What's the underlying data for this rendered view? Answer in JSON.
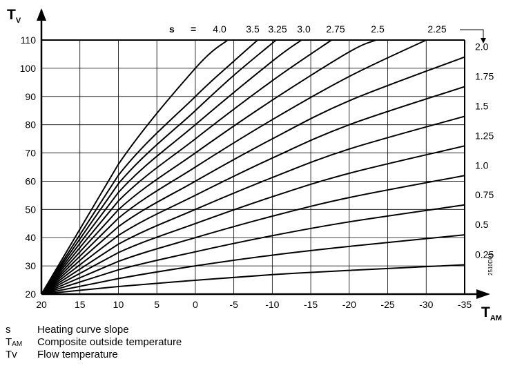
{
  "chart_data": {
    "type": "line",
    "xlabel": "T",
    "xlabel_sub": "AM",
    "ylabel": "T",
    "ylabel_sub": "V",
    "x_ticks": [
      "20",
      "15",
      "10",
      "5",
      "0",
      "-5",
      "-10",
      "-15",
      "-20",
      "-25",
      "-30",
      "-35"
    ],
    "y_ticks": [
      "20",
      "30",
      "40",
      "50",
      "60",
      "70",
      "80",
      "90",
      "100",
      "110"
    ],
    "xlim": [
      20,
      -35
    ],
    "ylim": [
      20,
      110
    ],
    "grid": true,
    "s_prefix": "s",
    "s_equals": "=",
    "code": "2510D01",
    "series": [
      {
        "name": "0.25",
        "points": [
          [
            10,
            22.7
          ],
          [
            0,
            24.9
          ],
          [
            -10,
            26.9
          ],
          [
            -20,
            28.4
          ],
          [
            -35,
            30.4
          ]
        ]
      },
      {
        "name": "0.5",
        "points": [
          [
            10,
            25.5
          ],
          [
            0,
            30.0
          ],
          [
            -10,
            33.8
          ],
          [
            -20,
            36.9
          ],
          [
            -35,
            41.0
          ]
        ]
      },
      {
        "name": "0.75",
        "points": [
          [
            10,
            28.6
          ],
          [
            0,
            35.0
          ],
          [
            -10,
            40.7
          ],
          [
            -20,
            45.6
          ],
          [
            -35,
            51.6
          ]
        ]
      },
      {
        "name": "1.0",
        "points": [
          [
            10,
            31.6
          ],
          [
            0,
            40.0
          ],
          [
            -10,
            47.6
          ],
          [
            -20,
            54.2
          ],
          [
            -35,
            62.0
          ]
        ]
      },
      {
        "name": "1.25",
        "points": [
          [
            10,
            34.7
          ],
          [
            0,
            45.0
          ],
          [
            -10,
            54.5
          ],
          [
            -20,
            62.8
          ],
          [
            -35,
            72.5
          ]
        ]
      },
      {
        "name": "1.5",
        "points": [
          [
            10,
            37.7
          ],
          [
            0,
            50.0
          ],
          [
            -10,
            61.3
          ],
          [
            -20,
            71.4
          ],
          [
            -35,
            83.0
          ]
        ]
      },
      {
        "name": "1.75",
        "points": [
          [
            10,
            40.8
          ],
          [
            0,
            55.0
          ],
          [
            -10,
            68.2
          ],
          [
            -20,
            80.0
          ],
          [
            -35,
            93.5
          ]
        ]
      },
      {
        "name": "2.0",
        "points": [
          [
            10,
            43.9
          ],
          [
            0,
            60.0
          ],
          [
            -10,
            75.0
          ],
          [
            -20,
            88.5
          ],
          [
            -35,
            104.0
          ]
        ]
      },
      {
        "name": "2.25",
        "points": [
          [
            10,
            46.9
          ],
          [
            0,
            65.0
          ],
          [
            -10,
            81.8
          ],
          [
            -20,
            97.1
          ],
          [
            -30,
            110.0
          ]
        ]
      },
      {
        "name": "2.5",
        "points": [
          [
            10,
            49.9
          ],
          [
            0,
            70.0
          ],
          [
            -10,
            88.7
          ],
          [
            -20,
            105.8
          ],
          [
            -23.5,
            110.0
          ]
        ]
      },
      {
        "name": "2.75",
        "points": [
          [
            10,
            53.0
          ],
          [
            0,
            75.0
          ],
          [
            -10,
            95.6
          ],
          [
            -17.7,
            110.0
          ]
        ]
      },
      {
        "name": "3.0",
        "points": [
          [
            10,
            56.0
          ],
          [
            0,
            80.0
          ],
          [
            -10,
            102.5
          ],
          [
            -13.8,
            110.0
          ]
        ]
      },
      {
        "name": "3.25",
        "points": [
          [
            10,
            59.1
          ],
          [
            0,
            85.0
          ],
          [
            -5,
            97.5
          ],
          [
            -10.5,
            110.0
          ]
        ]
      },
      {
        "name": "3.5",
        "points": [
          [
            10,
            62.1
          ],
          [
            0,
            90.0
          ],
          [
            -5,
            102.5
          ],
          [
            -8.1,
            110.0
          ]
        ]
      },
      {
        "name": "4.0",
        "points": [
          [
            10,
            66.0
          ],
          [
            0,
            100.0
          ],
          [
            -4.2,
            110.0
          ]
        ]
      }
    ],
    "lines_converge_at": [
      20,
      20
    ]
  },
  "legend": [
    {
      "symbol": "s",
      "symbol_sub": "",
      "text": "Heating curve slope"
    },
    {
      "symbol": "T",
      "symbol_sub": "AM",
      "text": "Composite outside temperature"
    },
    {
      "symbol": "Tv",
      "symbol_sub": "",
      "text": "Flow temperature"
    }
  ]
}
